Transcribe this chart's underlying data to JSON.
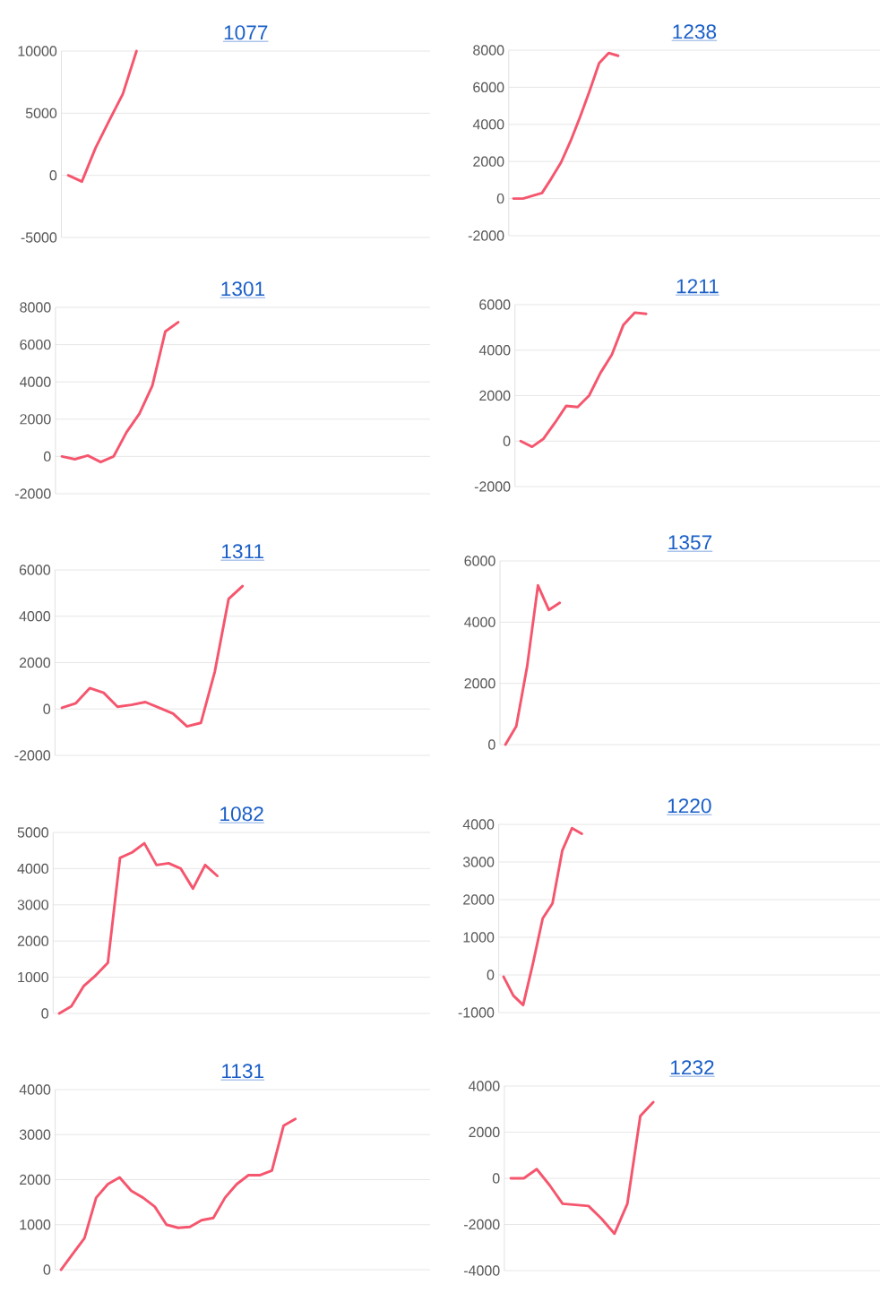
{
  "chart_data": [
    {
      "type": "line",
      "title": "1077",
      "color": "#f5566e",
      "grid": "y",
      "tick_labels": "y",
      "ylim": [
        -5000,
        10000
      ],
      "yticks": [
        -5000,
        0,
        5000,
        10000
      ],
      "categories": [
        null,
        null,
        null,
        null,
        null,
        null,
        null,
        null,
        null,
        null,
        null,
        null,
        null,
        null,
        null,
        null,
        null,
        null,
        null,
        null,
        null,
        null,
        null,
        null,
        null,
        null,
        null
      ],
      "values": [
        0,
        -500,
        2200,
        4400,
        6550,
        10000,
        null,
        null,
        null,
        null,
        null,
        null,
        null,
        null,
        null,
        null,
        null,
        null,
        null,
        null,
        null,
        null,
        null,
        null,
        null,
        null,
        null
      ]
    },
    {
      "type": "line",
      "title": "1238",
      "color": "#f5566e",
      "grid": "y",
      "tick_labels": "y",
      "ylim": [
        -2000,
        8000
      ],
      "yticks": [
        -2000,
        0,
        2000,
        4000,
        6000,
        8000
      ],
      "categories": [
        null,
        null,
        null,
        null,
        null,
        null,
        null,
        null,
        null,
        null,
        null,
        null,
        null,
        null,
        null,
        null,
        null,
        null,
        null,
        null,
        null,
        null,
        null,
        null,
        null,
        null,
        null,
        null,
        null,
        null,
        null,
        null,
        null,
        null,
        null,
        null,
        null,
        null,
        null
      ],
      "values": [
        0,
        0,
        150,
        300,
        1100,
        1950,
        3100,
        4400,
        5800,
        7300,
        7850,
        7700,
        null,
        null,
        null,
        null,
        null,
        null,
        null,
        null,
        null,
        null,
        null,
        null,
        null,
        null,
        null,
        null,
        null,
        null,
        null,
        null,
        null,
        null,
        null,
        null,
        null,
        null,
        null
      ]
    },
    {
      "type": "line",
      "title": "1301",
      "color": "#f5566e",
      "grid": "y",
      "tick_labels": "y",
      "ylim": [
        -2000,
        8000
      ],
      "yticks": [
        -2000,
        0,
        2000,
        4000,
        6000,
        8000
      ],
      "categories": [
        null,
        null,
        null,
        null,
        null,
        null,
        null,
        null,
        null,
        null,
        null,
        null,
        null,
        null,
        null,
        null,
        null,
        null,
        null,
        null,
        null,
        null,
        null,
        null,
        null,
        null,
        null,
        null,
        null
      ],
      "values": [
        0,
        -150,
        50,
        -300,
        0,
        1300,
        2300,
        3800,
        6700,
        7200,
        null,
        null,
        null,
        null,
        null,
        null,
        null,
        null,
        null,
        null,
        null,
        null,
        null,
        null,
        null,
        null,
        null,
        null,
        null
      ]
    },
    {
      "type": "line",
      "title": "1211",
      "color": "#f5566e",
      "grid": "y",
      "tick_labels": "y",
      "ylim": [
        -2000,
        6000
      ],
      "yticks": [
        -2000,
        0,
        2000,
        4000,
        6000
      ],
      "categories": [
        null,
        null,
        null,
        null,
        null,
        null,
        null,
        null,
        null,
        null,
        null,
        null,
        null,
        null,
        null,
        null,
        null,
        null,
        null,
        null,
        null,
        null,
        null,
        null,
        null,
        null,
        null,
        null,
        null,
        null,
        null,
        null
      ],
      "values": [
        0,
        -250,
        100,
        800,
        1550,
        1500,
        2000,
        3000,
        3800,
        5100,
        5650,
        5600,
        null,
        null,
        null,
        null,
        null,
        null,
        null,
        null,
        null,
        null,
        null,
        null,
        null,
        null,
        null,
        null,
        null,
        null,
        null,
        null
      ]
    },
    {
      "type": "line",
      "title": "1311",
      "color": "#f5566e",
      "grid": "y",
      "tick_labels": "y",
      "ylim": [
        -2000,
        6000
      ],
      "yticks": [
        -2000,
        0,
        2000,
        4000,
        6000
      ],
      "categories": [
        null,
        null,
        null,
        null,
        null,
        null,
        null,
        null,
        null,
        null,
        null,
        null,
        null,
        null,
        null,
        null,
        null,
        null,
        null,
        null,
        null,
        null,
        null,
        null,
        null,
        null,
        null
      ],
      "values": [
        50,
        250,
        900,
        700,
        100,
        180,
        300,
        50,
        -200,
        -750,
        -600,
        1600,
        4750,
        5300,
        null,
        null,
        null,
        null,
        null,
        null,
        null,
        null,
        null,
        null,
        null,
        null,
        null
      ]
    },
    {
      "type": "line",
      "title": "1357",
      "color": "#f5566e",
      "grid": "y",
      "tick_labels": "y",
      "ylim": [
        0,
        6000
      ],
      "yticks": [
        0,
        2000,
        4000,
        6000
      ],
      "categories": [
        null,
        null,
        null,
        null,
        null,
        null,
        null,
        null,
        null,
        null,
        null,
        null,
        null,
        null,
        null,
        null,
        null,
        null,
        null,
        null,
        null,
        null,
        null,
        null,
        null,
        null,
        null,
        null,
        null,
        null,
        null,
        null,
        null,
        null,
        null
      ],
      "values": [
        0,
        600,
        2550,
        5200,
        4400,
        4630,
        null,
        null,
        null,
        null,
        null,
        null,
        null,
        null,
        null,
        null,
        null,
        null,
        null,
        null,
        null,
        null,
        null,
        null,
        null,
        null,
        null,
        null,
        null,
        null,
        null,
        null,
        null,
        null,
        null
      ]
    },
    {
      "type": "line",
      "title": "1082",
      "color": "#f5566e",
      "grid": "y",
      "tick_labels": "y",
      "ylim": [
        0,
        5000
      ],
      "yticks": [
        0,
        1000,
        2000,
        3000,
        4000,
        5000
      ],
      "categories": [
        null,
        null,
        null,
        null,
        null,
        null,
        null,
        null,
        null,
        null,
        null,
        null,
        null,
        null,
        null,
        null,
        null,
        null,
        null,
        null,
        null,
        null,
        null,
        null,
        null,
        null,
        null,
        null,
        null,
        null,
        null
      ],
      "values": [
        0,
        200,
        750,
        1050,
        1400,
        4300,
        4450,
        4700,
        4100,
        4150,
        4000,
        3450,
        4100,
        3800,
        null,
        null,
        null,
        null,
        null,
        null,
        null,
        null,
        null,
        null,
        null,
        null,
        null,
        null,
        null,
        null,
        null
      ]
    },
    {
      "type": "line",
      "title": "1220",
      "color": "#f5566e",
      "grid": "y",
      "tick_labels": "y",
      "ylim": [
        -1000,
        4000
      ],
      "yticks": [
        -1000,
        0,
        1000,
        2000,
        3000,
        4000
      ],
      "categories": [
        null,
        null,
        null,
        null,
        null,
        null,
        null,
        null,
        null,
        null,
        null,
        null,
        null,
        null,
        null,
        null,
        null,
        null,
        null,
        null,
        null,
        null,
        null,
        null,
        null,
        null,
        null,
        null,
        null,
        null,
        null,
        null,
        null,
        null,
        null,
        null,
        null,
        null,
        null
      ],
      "values": [
        -50,
        -550,
        -800,
        300,
        1500,
        1900,
        3300,
        3900,
        3750,
        null,
        null,
        null,
        null,
        null,
        null,
        null,
        null,
        null,
        null,
        null,
        null,
        null,
        null,
        null,
        null,
        null,
        null,
        null,
        null,
        null,
        null,
        null,
        null,
        null,
        null,
        null,
        null,
        null,
        null
      ]
    },
    {
      "type": "line",
      "title": "1131",
      "color": "#f5566e",
      "grid": "y",
      "tick_labels": "y",
      "ylim": [
        0,
        4000
      ],
      "yticks": [
        0,
        1000,
        2000,
        3000,
        4000
      ],
      "categories": [
        null,
        null,
        null,
        null,
        null,
        null,
        null,
        null,
        null,
        null,
        null,
        null,
        null,
        null,
        null,
        null,
        null,
        null,
        null,
        null,
        null,
        null,
        null,
        null,
        null,
        null,
        null,
        null,
        null,
        null,
        null,
        null
      ],
      "values": [
        0,
        350,
        700,
        1600,
        1900,
        2050,
        1750,
        1600,
        1400,
        1000,
        930,
        950,
        1100,
        1150,
        1600,
        1900,
        2100,
        2100,
        2200,
        3200,
        3350,
        null,
        null,
        null,
        null,
        null,
        null,
        null,
        null,
        null,
        null,
        null
      ]
    },
    {
      "type": "line",
      "title": "1232",
      "color": "#f5566e",
      "grid": "y",
      "tick_labels": "y",
      "ylim": [
        -4000,
        4000
      ],
      "yticks": [
        -4000,
        -2000,
        0,
        2000,
        4000
      ],
      "categories": [
        null,
        null,
        null,
        null,
        null,
        null,
        null,
        null,
        null,
        null,
        null,
        null,
        null,
        null,
        null,
        null,
        null,
        null,
        null,
        null,
        null,
        null,
        null,
        null,
        null,
        null,
        null,
        null,
        null
      ],
      "values": [
        0,
        0,
        400,
        -300,
        -1100,
        -1150,
        -1200,
        -1750,
        -2400,
        -1100,
        2700,
        3300,
        null,
        null,
        null,
        null,
        null,
        null,
        null,
        null,
        null,
        null,
        null,
        null,
        null,
        null,
        null,
        null,
        null
      ]
    }
  ]
}
